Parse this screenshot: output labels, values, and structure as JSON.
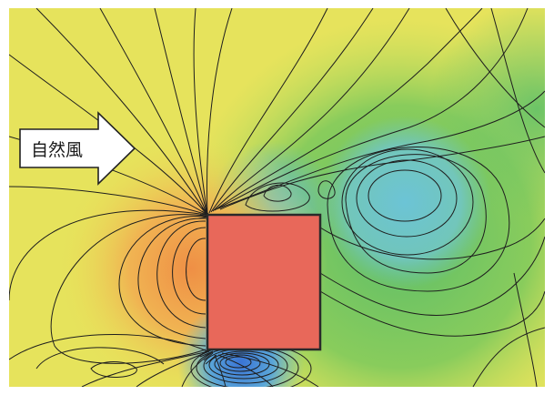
{
  "label": {
    "text": "自然風"
  },
  "colors": {
    "frame": "#ffffff",
    "building": "#e8685a",
    "building_edge": "#2a2a2a",
    "contour": "#1e1e1e",
    "arrow_fill": "#ffffff",
    "arrow_edge": "#222222",
    "field_yellow": "#e8e55a",
    "field_green": "#62bf5b",
    "field_cyan": "#6ac0cf",
    "field_orange": "#ef9a48",
    "field_blue": "#3f7fd4"
  },
  "icons": {
    "wind_arrow": "right-arrow-icon"
  }
}
